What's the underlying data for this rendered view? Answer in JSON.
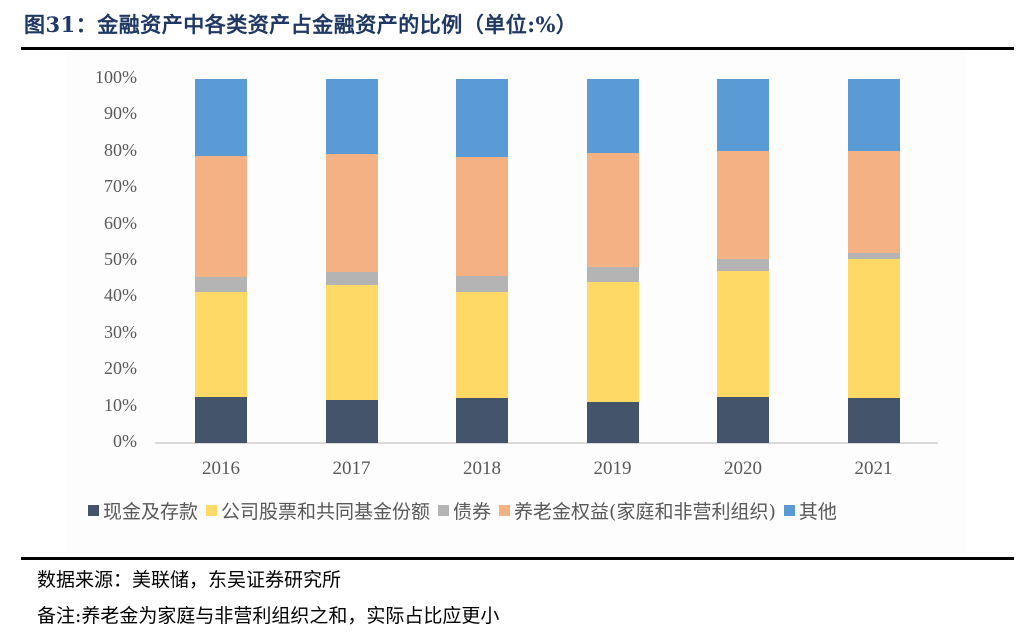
{
  "header": {
    "title": "图31：金融资产中各类资产占金融资产的比例（单位:%）"
  },
  "colors": {
    "cash": "#44546a",
    "equity": "#ffd966",
    "bonds": "#b4b4b4",
    "pension": "#f4b183",
    "other": "#5b9bd5"
  },
  "chart_data": {
    "type": "bar",
    "stacked": true,
    "percent_stacked": true,
    "title": "金融资产中各类资产占金融资产的比例（单位:%）",
    "xlabel": "",
    "ylabel": "",
    "ylim": [
      0,
      100
    ],
    "yticks": [
      "0%",
      "10%",
      "20%",
      "30%",
      "40%",
      "50%",
      "60%",
      "70%",
      "80%",
      "90%",
      "100%"
    ],
    "categories": [
      "2016",
      "2017",
      "2018",
      "2019",
      "2020",
      "2021"
    ],
    "series": [
      {
        "name": "现金及存款",
        "color": "#44546a",
        "values": [
          12.6,
          11.8,
          12.4,
          11.3,
          12.6,
          12.4
        ]
      },
      {
        "name": "公司股票和共同基金份额",
        "color": "#ffd966",
        "values": [
          28.9,
          31.6,
          29.1,
          32.9,
          34.7,
          38.1
        ]
      },
      {
        "name": "债券",
        "color": "#b4b4b4",
        "values": [
          4.1,
          3.6,
          4.4,
          4.2,
          3.2,
          1.7
        ]
      },
      {
        "name": "养老金权益(家庭和非营利组织)",
        "color": "#f4b183",
        "values": [
          33.2,
          32.4,
          32.7,
          31.3,
          29.7,
          28.0
        ]
      },
      {
        "name": "其他",
        "color": "#5b9bd5",
        "values": [
          21.2,
          20.6,
          21.4,
          20.3,
          19.8,
          19.8
        ]
      }
    ],
    "legend_position": "bottom",
    "grid": false
  },
  "legend": {
    "items": [
      {
        "label": "现金及存款",
        "color": "#44546a"
      },
      {
        "label": "公司股票和共同基金份额",
        "color": "#ffd966"
      },
      {
        "label": "债券",
        "color": "#b4b4b4"
      },
      {
        "label": "养老金权益(家庭和非营利组织)",
        "color": "#f4b183"
      },
      {
        "label": "其他",
        "color": "#5b9bd5"
      }
    ]
  },
  "footer": {
    "source": "数据来源：美联储，东吴证券研究所",
    "note": "备注:养老金为家庭与非营利组织之和，实际占比应更小"
  }
}
